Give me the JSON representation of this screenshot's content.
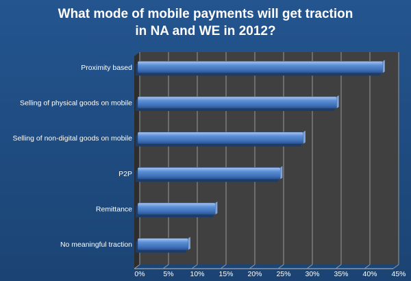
{
  "chart_data": {
    "type": "bar",
    "orientation": "horizontal",
    "title_lines": [
      "What mode of mobile payments will get traction",
      "in NA and WE in 2012?"
    ],
    "categories": [
      "Proximity based",
      "Selling of physical goods on mobile",
      "Selling of non-digital goods on mobile",
      "P2P",
      "Remittance",
      "No meaningful traction"
    ],
    "values": [
      0.426,
      0.346,
      0.288,
      0.248,
      0.135,
      0.088
    ],
    "xlim": [
      0,
      0.45
    ],
    "xticks": [
      0,
      0.05,
      0.1,
      0.15,
      0.2,
      0.25,
      0.3,
      0.35,
      0.4,
      0.45
    ],
    "xtick_labels": [
      "0%",
      "5%",
      "10%",
      "15%",
      "20%",
      "25%",
      "30%",
      "35%",
      "40%",
      "45%"
    ],
    "grid": true,
    "legend": "none",
    "colors": {
      "background": "#1f497d",
      "plot_area": "#404040",
      "bar": "#4f81bd",
      "grid": "#9a9a9a",
      "text": "#ffffff"
    }
  }
}
